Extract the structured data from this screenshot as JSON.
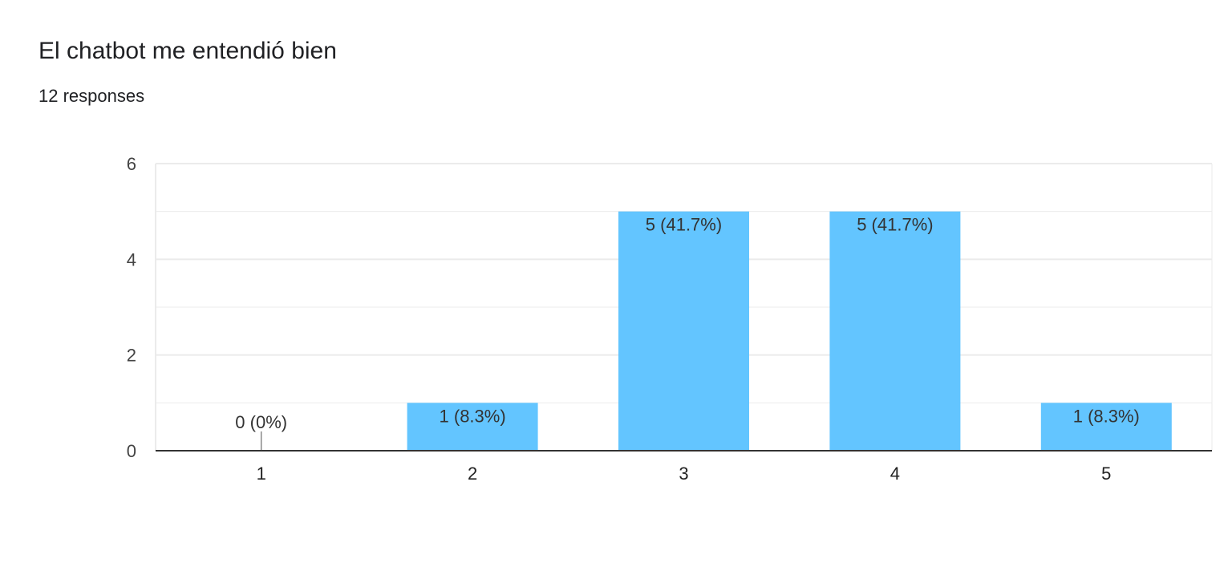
{
  "header": {
    "title": "El chatbot me entendió bien",
    "responses": "12 responses"
  },
  "colors": {
    "bar": "#63c5ff",
    "gridline": "#ebebeb",
    "axis": "#333333"
  },
  "chart_data": {
    "type": "bar",
    "categories": [
      "1",
      "2",
      "3",
      "4",
      "5"
    ],
    "values": [
      0,
      1,
      5,
      5,
      1
    ],
    "data_labels": [
      "0 (0%)",
      "1 (8.3%)",
      "5 (41.7%)",
      "5 (41.7%)",
      "1 (8.3%)"
    ],
    "ylim": [
      0,
      6
    ],
    "yticks": [
      0,
      2,
      4,
      6
    ],
    "grid": true,
    "legend": "none"
  }
}
